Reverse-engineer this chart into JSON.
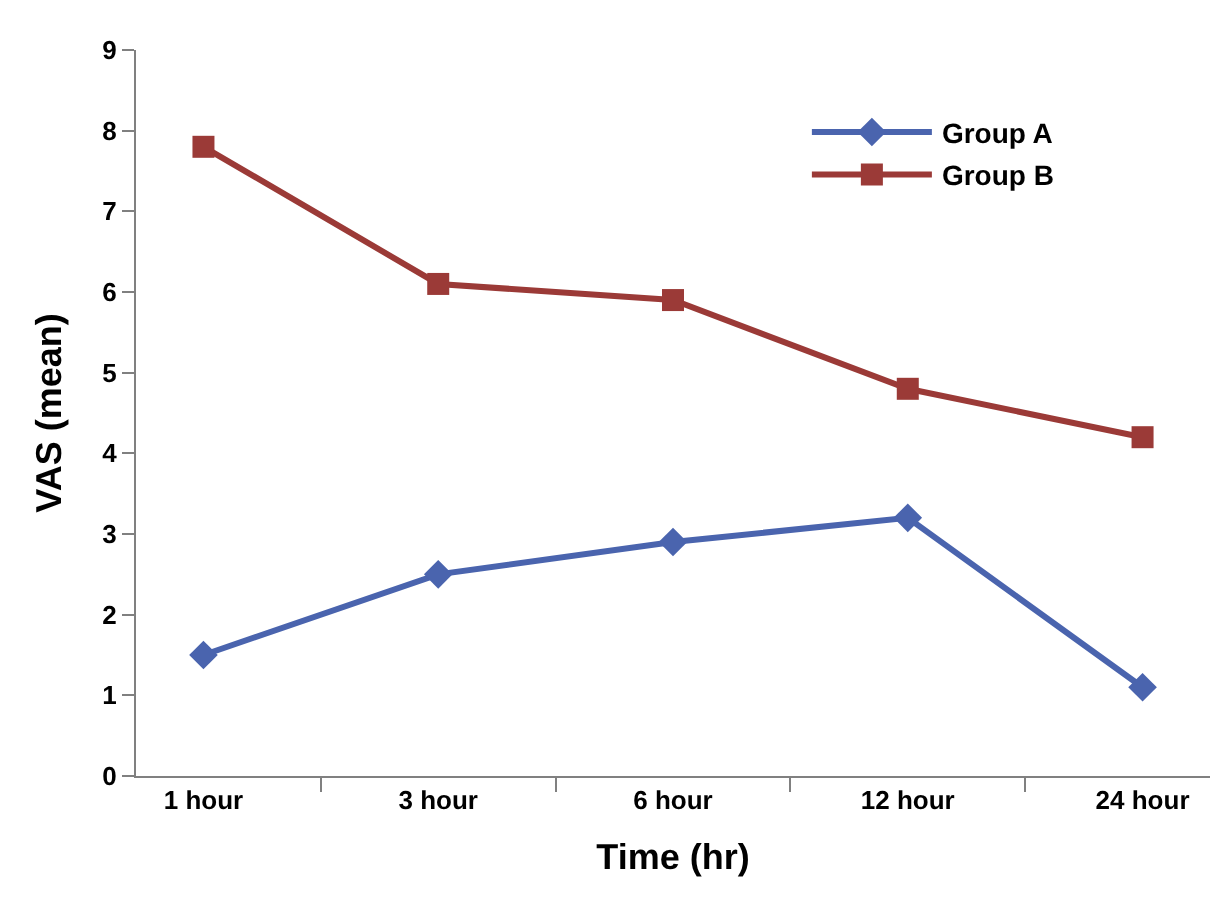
{
  "chart_data": {
    "type": "line",
    "xlabel": "Time (hr)",
    "ylabel": "VAS (mean)",
    "categories": [
      "1 hour",
      "3 hour",
      "6 hour",
      "12 hour",
      "24 hour"
    ],
    "series": [
      {
        "name": "Group A",
        "color": "#4a64ae",
        "marker": "diamond",
        "values": [
          1.5,
          2.5,
          2.9,
          3.2,
          1.1
        ]
      },
      {
        "name": "Group B",
        "color": "#9b3a37",
        "marker": "square",
        "values": [
          7.8,
          6.1,
          5.9,
          4.8,
          4.2
        ]
      }
    ],
    "ylim": [
      0,
      9
    ],
    "yticks": [
      0,
      1,
      2,
      3,
      4,
      5,
      6,
      7,
      8,
      9
    ],
    "legend": "top right",
    "line_style": "solid"
  }
}
